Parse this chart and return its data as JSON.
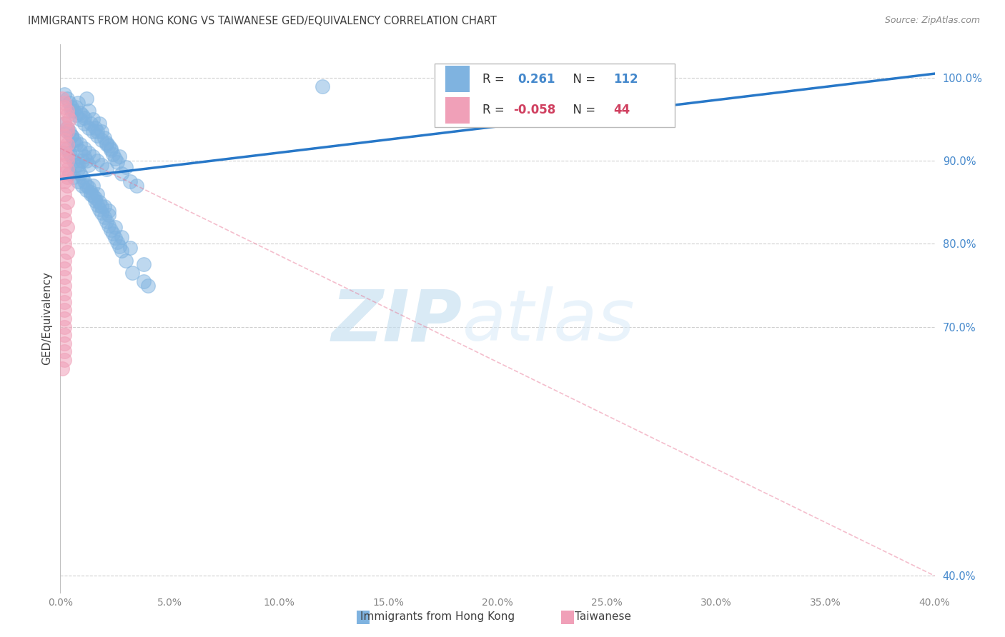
{
  "title": "IMMIGRANTS FROM HONG KONG VS TAIWANESE GED/EQUIVALENCY CORRELATION CHART",
  "source": "Source: ZipAtlas.com",
  "ylabel": "GED/Equivalency",
  "legend_blue_label": "Immigrants from Hong Kong",
  "legend_pink_label": "Taiwanese",
  "R_blue": 0.261,
  "N_blue": 112,
  "R_pink": -0.058,
  "N_pink": 44,
  "watermark_zip": "ZIP",
  "watermark_atlas": "atlas",
  "background_color": "#ffffff",
  "blue_color": "#7fb3e0",
  "pink_color": "#f0a0b8",
  "blue_line_color": "#2878c8",
  "pink_line_color": "#e87090",
  "title_color": "#404040",
  "axis_color": "#888888",
  "right_tick_color": "#4488cc",
  "grid_color": "#d0d0d0",
  "x_min": 0.0,
  "x_max": 0.4,
  "y_min": 0.38,
  "y_max": 1.04,
  "ytick_positions": [
    1.0,
    0.9,
    0.8,
    0.7,
    0.4
  ],
  "ytick_labels": [
    "100.0%",
    "90.0%",
    "80.0%",
    "70.0%",
    "40.0%"
  ],
  "blue_line_x0": 0.0,
  "blue_line_y0": 0.878,
  "blue_line_x1": 0.4,
  "blue_line_y1": 1.005,
  "pink_line_x0": 0.0,
  "pink_line_y0": 0.915,
  "pink_line_x1": 0.4,
  "pink_line_y1": 0.4,
  "blue_scatter_x": [
    0.002,
    0.003,
    0.004,
    0.005,
    0.006,
    0.007,
    0.008,
    0.009,
    0.01,
    0.011,
    0.012,
    0.013,
    0.014,
    0.015,
    0.016,
    0.017,
    0.018,
    0.019,
    0.02,
    0.021,
    0.022,
    0.023,
    0.024,
    0.025,
    0.026,
    0.027,
    0.028,
    0.03,
    0.032,
    0.035,
    0.003,
    0.005,
    0.007,
    0.009,
    0.011,
    0.013,
    0.015,
    0.017,
    0.019,
    0.021,
    0.004,
    0.006,
    0.008,
    0.01,
    0.012,
    0.014,
    0.016,
    0.018,
    0.02,
    0.022,
    0.003,
    0.004,
    0.005,
    0.006,
    0.007,
    0.008,
    0.009,
    0.01,
    0.011,
    0.012,
    0.013,
    0.014,
    0.015,
    0.016,
    0.017,
    0.018,
    0.019,
    0.02,
    0.021,
    0.022,
    0.023,
    0.024,
    0.025,
    0.026,
    0.027,
    0.028,
    0.03,
    0.033,
    0.038,
    0.04,
    0.002,
    0.003,
    0.004,
    0.005,
    0.006,
    0.007,
    0.008,
    0.009,
    0.01,
    0.011,
    0.012,
    0.013,
    0.015,
    0.017,
    0.019,
    0.022,
    0.025,
    0.028,
    0.032,
    0.038,
    0.12,
    0.18,
    0.005,
    0.007,
    0.009,
    0.011,
    0.013,
    0.015,
    0.017,
    0.019,
    0.021,
    0.023
  ],
  "blue_scatter_y": [
    0.98,
    0.975,
    0.97,
    0.965,
    0.96,
    0.965,
    0.97,
    0.958,
    0.955,
    0.952,
    0.975,
    0.96,
    0.945,
    0.95,
    0.94,
    0.935,
    0.945,
    0.935,
    0.928,
    0.922,
    0.918,
    0.913,
    0.908,
    0.903,
    0.898,
    0.905,
    0.885,
    0.892,
    0.875,
    0.87,
    0.935,
    0.93,
    0.925,
    0.92,
    0.915,
    0.91,
    0.905,
    0.9,
    0.895,
    0.89,
    0.885,
    0.88,
    0.875,
    0.87,
    0.865,
    0.86,
    0.855,
    0.85,
    0.845,
    0.84,
    0.915,
    0.91,
    0.905,
    0.9,
    0.895,
    0.89,
    0.885,
    0.88,
    0.875,
    0.87,
    0.868,
    0.862,
    0.858,
    0.852,
    0.847,
    0.842,
    0.837,
    0.832,
    0.827,
    0.822,
    0.817,
    0.812,
    0.807,
    0.802,
    0.797,
    0.792,
    0.78,
    0.765,
    0.755,
    0.75,
    0.945,
    0.94,
    0.935,
    0.93,
    0.925,
    0.92,
    0.895,
    0.912,
    0.9,
    0.905,
    0.9,
    0.895,
    0.87,
    0.86,
    0.845,
    0.835,
    0.82,
    0.808,
    0.795,
    0.775,
    0.99,
    1.0,
    0.96,
    0.955,
    0.95,
    0.945,
    0.94,
    0.935,
    0.93,
    0.925,
    0.92,
    0.915
  ],
  "pink_scatter_x": [
    0.001,
    0.002,
    0.002,
    0.003,
    0.003,
    0.004,
    0.002,
    0.003,
    0.003,
    0.002,
    0.002,
    0.003,
    0.002,
    0.002,
    0.003,
    0.003,
    0.002,
    0.003,
    0.002,
    0.003,
    0.002,
    0.003,
    0.002,
    0.003,
    0.002,
    0.002,
    0.003,
    0.002,
    0.002,
    0.003,
    0.002,
    0.002,
    0.002,
    0.002,
    0.002,
    0.002,
    0.002,
    0.002,
    0.002,
    0.002,
    0.002,
    0.002,
    0.002,
    0.001
  ],
  "pink_scatter_y": [
    0.975,
    0.97,
    0.965,
    0.96,
    0.955,
    0.95,
    0.945,
    0.94,
    0.935,
    0.93,
    0.925,
    0.92,
    0.915,
    0.91,
    0.905,
    0.9,
    0.895,
    0.89,
    0.885,
    0.88,
    0.875,
    0.87,
    0.86,
    0.85,
    0.84,
    0.83,
    0.82,
    0.81,
    0.8,
    0.79,
    0.78,
    0.77,
    0.76,
    0.75,
    0.74,
    0.73,
    0.72,
    0.71,
    0.7,
    0.69,
    0.68,
    0.67,
    0.66,
    0.65
  ]
}
